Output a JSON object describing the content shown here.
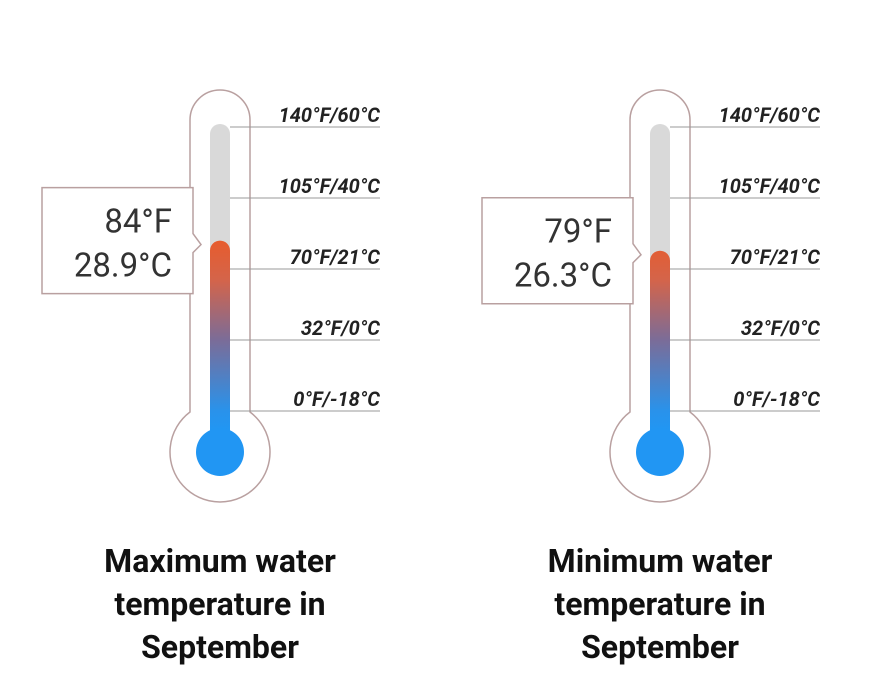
{
  "chart_data": [
    {
      "type": "thermometer",
      "title": "Maximum water temperature in September",
      "values": [
        84,
        28.9
      ],
      "value_labels": [
        "84°F",
        "28.9°C"
      ],
      "ylim": [
        0,
        140
      ],
      "yticks": [
        {
          "value": 140,
          "label": "140°F/60°C"
        },
        {
          "value": 105,
          "label": "105°F/40°C"
        },
        {
          "value": 70,
          "label": "70°F/21°C"
        },
        {
          "value": 32,
          "label": "32°F/0°C"
        },
        {
          "value": 0,
          "label": "0°F/-18°C"
        }
      ]
    },
    {
      "type": "thermometer",
      "title": "Minimum water temperature in September",
      "values": [
        79,
        26.3
      ],
      "value_labels": [
        "79°F",
        "26.3°C"
      ],
      "ylim": [
        0,
        140
      ],
      "yticks": [
        {
          "value": 140,
          "label": "140°F/60°C"
        },
        {
          "value": 105,
          "label": "105°F/40°C"
        },
        {
          "value": 70,
          "label": "70°F/21°C"
        },
        {
          "value": 32,
          "label": "32°F/0°C"
        },
        {
          "value": 0,
          "label": "0°F/-18°C"
        }
      ]
    }
  ]
}
